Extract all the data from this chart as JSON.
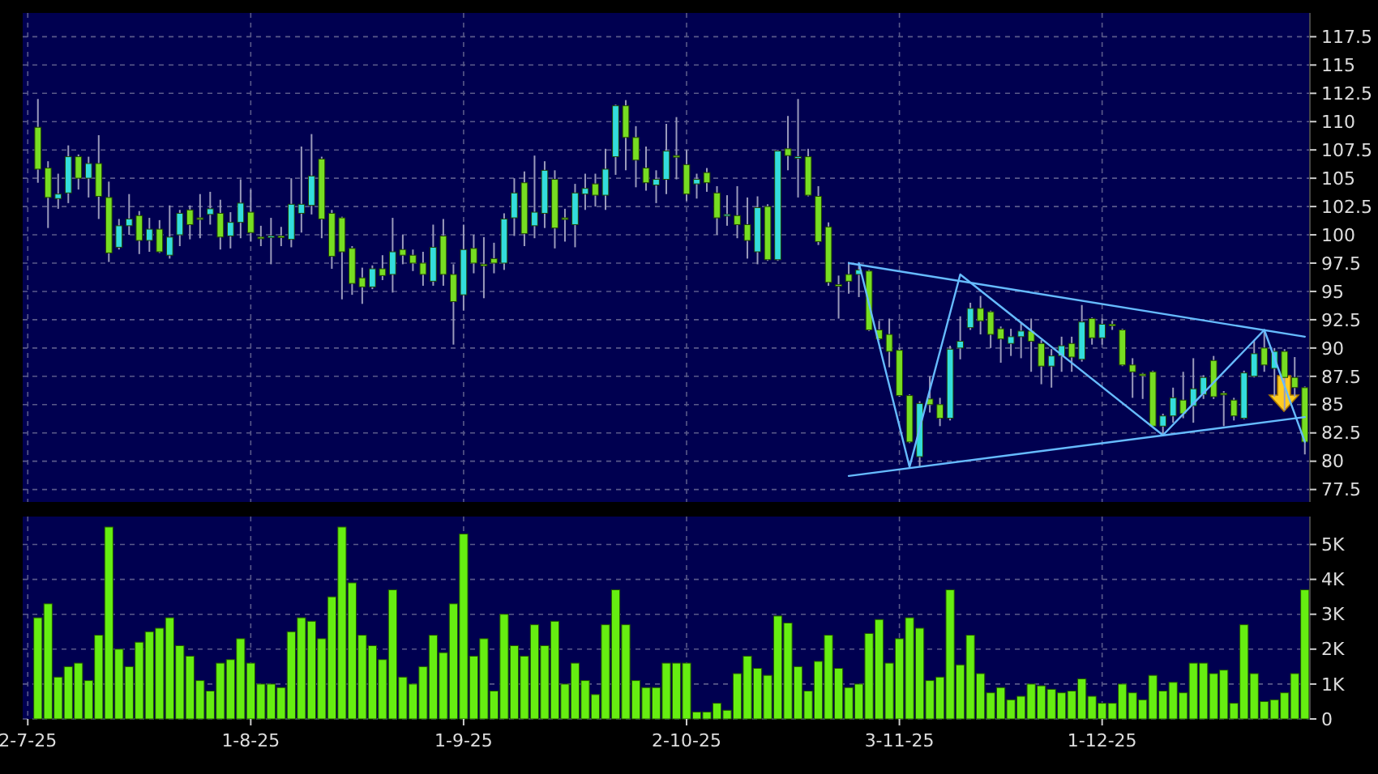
{
  "chart_data": [
    {
      "type": "candlestick",
      "grid": true,
      "categories": [
        null,
        null,
        null,
        null,
        null,
        null,
        null,
        null,
        null,
        null,
        null,
        null,
        null,
        null,
        null,
        null,
        null,
        null,
        null,
        null,
        null,
        null,
        null,
        null,
        null,
        null,
        null,
        null,
        null,
        null,
        null,
        null,
        null,
        null,
        null,
        null,
        null,
        null,
        null,
        null,
        null,
        null,
        null,
        null,
        null,
        null,
        null,
        null,
        null,
        null,
        null,
        null,
        null,
        null,
        null,
        null,
        null,
        null,
        null,
        null,
        null,
        null,
        null,
        null,
        null,
        null,
        null,
        null,
        null,
        null,
        null,
        null,
        null,
        null,
        null,
        null,
        null,
        null,
        null,
        null,
        null,
        null,
        null,
        null,
        null,
        null,
        null,
        null,
        null,
        null,
        null,
        null,
        null,
        null,
        null,
        null,
        null,
        null,
        null,
        null,
        null,
        null,
        null,
        null,
        null,
        null,
        null,
        null,
        null,
        null,
        null,
        null,
        null,
        null,
        null,
        null,
        null,
        null,
        null,
        null,
        null,
        null,
        null,
        null,
        null,
        null,
        null
      ],
      "ohlc": [
        null,
        [
          109.5,
          112.0,
          104.6,
          105.8
        ],
        [
          105.9,
          106.5,
          100.6,
          103.3
        ],
        [
          103.2,
          105.4,
          102.3,
          103.6
        ],
        [
          103.7,
          107.9,
          102.8,
          106.9
        ],
        [
          106.9,
          107.1,
          104.0,
          105.0
        ],
        [
          105.0,
          106.9,
          103.3,
          106.3
        ],
        [
          106.3,
          108.8,
          101.4,
          103.4
        ],
        [
          103.3,
          104.7,
          97.6,
          98.4
        ],
        [
          98.9,
          101.4,
          98.7,
          100.8
        ],
        [
          100.8,
          103.6,
          100.0,
          101.4
        ],
        [
          101.7,
          102.1,
          98.3,
          99.5
        ],
        [
          99.5,
          101.5,
          98.5,
          100.5
        ],
        [
          100.5,
          101.3,
          98.4,
          98.5
        ],
        [
          98.2,
          102.6,
          97.9,
          99.8
        ],
        [
          100.0,
          102.2,
          99.0,
          101.9
        ],
        [
          102.2,
          102.6,
          99.6,
          100.9
        ],
        [
          101.5,
          103.6,
          99.7,
          101.4
        ],
        [
          101.8,
          103.8,
          100.9,
          102.3
        ],
        [
          101.9,
          103.1,
          98.7,
          99.8
        ],
        [
          99.9,
          102.0,
          98.8,
          101.1
        ],
        [
          101.1,
          104.9,
          99.7,
          102.8
        ],
        [
          102.0,
          104.0,
          99.4,
          100.2
        ],
        [
          99.8,
          100.8,
          99.0,
          99.7
        ],
        [
          99.8,
          101.5,
          97.4,
          99.9
        ],
        [
          99.9,
          100.7,
          99.0,
          99.8
        ],
        [
          99.6,
          105.0,
          98.9,
          102.7
        ],
        [
          101.9,
          107.8,
          100.2,
          102.7
        ],
        [
          102.6,
          108.9,
          101.8,
          105.2
        ],
        [
          106.7,
          106.9,
          99.7,
          101.4
        ],
        [
          101.9,
          102.2,
          97.0,
          98.1
        ],
        [
          101.5,
          101.6,
          94.3,
          98.5
        ],
        [
          98.8,
          99.0,
          94.7,
          95.7
        ],
        [
          96.2,
          97.1,
          93.9,
          95.4
        ],
        [
          95.4,
          97.3,
          95.2,
          97.0
        ],
        [
          97.0,
          98.2,
          96.0,
          96.4
        ],
        [
          96.5,
          101.5,
          94.9,
          98.5
        ],
        [
          98.7,
          100.0,
          97.4,
          98.2
        ],
        [
          98.2,
          98.7,
          96.8,
          97.5
        ],
        [
          97.5,
          98.5,
          95.5,
          96.5
        ],
        [
          95.9,
          100.9,
          95.5,
          98.9
        ],
        [
          99.9,
          101.4,
          95.5,
          96.5
        ],
        [
          96.5,
          97.4,
          90.3,
          94.1
        ],
        [
          94.7,
          100.9,
          93.3,
          98.7
        ],
        [
          98.8,
          100.0,
          96.6,
          97.5
        ],
        [
          97.4,
          99.8,
          94.4,
          97.3
        ],
        [
          97.9,
          99.3,
          96.6,
          97.5
        ],
        [
          97.5,
          101.9,
          96.9,
          101.4
        ],
        [
          101.5,
          105.0,
          99.9,
          103.7
        ],
        [
          104.6,
          105.6,
          99.0,
          100.1
        ],
        [
          100.8,
          107.0,
          99.7,
          102.0
        ],
        [
          101.9,
          106.5,
          100.6,
          105.7
        ],
        [
          104.9,
          105.7,
          98.8,
          100.6
        ],
        [
          101.5,
          102.3,
          99.4,
          101.4
        ],
        [
          100.9,
          104.5,
          98.9,
          103.7
        ],
        [
          103.6,
          105.4,
          102.2,
          104.1
        ],
        [
          104.5,
          105.4,
          102.5,
          103.5
        ],
        [
          103.5,
          107.6,
          102.2,
          105.8
        ],
        [
          106.9,
          111.5,
          105.3,
          111.4
        ],
        [
          111.4,
          111.9,
          105.7,
          108.6
        ],
        [
          108.6,
          109.6,
          104.2,
          106.6
        ],
        [
          105.9,
          107.8,
          103.9,
          104.6
        ],
        [
          104.4,
          105.7,
          102.8,
          104.9
        ],
        [
          104.9,
          109.8,
          103.6,
          107.4
        ],
        [
          107.0,
          110.4,
          104.9,
          106.9
        ],
        [
          106.2,
          107.5,
          103.0,
          103.6
        ],
        [
          104.5,
          105.4,
          103.2,
          104.9
        ],
        [
          105.5,
          105.9,
          103.8,
          104.6
        ],
        [
          103.7,
          104.3,
          100.0,
          101.5
        ],
        [
          101.7,
          103.5,
          100.8,
          101.8
        ],
        [
          101.7,
          104.3,
          99.7,
          100.9
        ],
        [
          100.9,
          103.3,
          97.9,
          99.5
        ],
        [
          98.5,
          103.4,
          97.4,
          102.4
        ],
        [
          102.5,
          102.7,
          97.7,
          97.8
        ],
        [
          97.8,
          107.5,
          97.7,
          107.4
        ],
        [
          107.6,
          110.5,
          105.7,
          107.0
        ],
        [
          106.8,
          112.0,
          103.3,
          106.9
        ],
        [
          106.9,
          107.6,
          103.4,
          103.5
        ],
        [
          103.4,
          104.3,
          99.1,
          99.4
        ],
        [
          100.7,
          101.1,
          95.5,
          95.8
        ],
        [
          95.6,
          96.4,
          92.6,
          95.5
        ],
        [
          96.5,
          97.6,
          94.8,
          95.9
        ],
        [
          96.5,
          97.4,
          94.5,
          96.9
        ],
        [
          96.8,
          96.9,
          91.5,
          91.6
        ],
        [
          91.6,
          92.4,
          90.7,
          90.8
        ],
        [
          91.2,
          92.6,
          88.3,
          89.7
        ],
        [
          89.8,
          90.0,
          85.7,
          85.8
        ],
        [
          85.8,
          85.9,
          81.6,
          81.7
        ],
        [
          80.4,
          85.3,
          79.5,
          85.1
        ],
        [
          85.5,
          87.5,
          84.3,
          85.0
        ],
        [
          85.0,
          85.6,
          83.1,
          83.8
        ],
        [
          83.8,
          90.2,
          83.6,
          89.9
        ],
        [
          90.0,
          92.8,
          89.0,
          90.6
        ],
        [
          91.8,
          94.0,
          91.6,
          93.5
        ],
        [
          93.5,
          94.6,
          91.2,
          92.4
        ],
        [
          93.2,
          93.3,
          90.0,
          91.2
        ],
        [
          91.7,
          91.9,
          88.7,
          90.8
        ],
        [
          90.4,
          91.7,
          89.3,
          91.0
        ],
        [
          91.0,
          92.2,
          89.1,
          91.5
        ],
        [
          91.5,
          92.6,
          87.9,
          90.6
        ],
        [
          90.4,
          90.7,
          86.8,
          88.4
        ],
        [
          88.4,
          89.9,
          86.5,
          89.3
        ],
        [
          89.3,
          91.0,
          87.9,
          90.2
        ],
        [
          90.4,
          91.0,
          87.9,
          89.2
        ],
        [
          89.0,
          93.8,
          88.8,
          92.3
        ],
        [
          92.6,
          92.7,
          90.3,
          90.9
        ],
        [
          90.9,
          92.6,
          90.3,
          92.1
        ],
        [
          92.1,
          92.4,
          91.6,
          92.0
        ],
        [
          91.6,
          91.7,
          88.4,
          88.5
        ],
        [
          88.5,
          89.1,
          85.6,
          87.9
        ],
        [
          87.7,
          87.8,
          85.5,
          87.6
        ],
        [
          87.9,
          88.0,
          83.0,
          83.1
        ],
        [
          83.1,
          84.2,
          82.3,
          84.0
        ],
        [
          84.0,
          86.5,
          83.4,
          85.6
        ],
        [
          85.4,
          87.9,
          83.8,
          84.2
        ],
        [
          84.9,
          89.1,
          83.4,
          86.4
        ],
        [
          85.9,
          87.6,
          85.5,
          87.4
        ],
        [
          88.9,
          89.3,
          85.5,
          85.7
        ],
        [
          86.0,
          86.2,
          83.1,
          85.9
        ],
        [
          85.4,
          85.6,
          83.6,
          84.0
        ],
        [
          83.8,
          88.0,
          83.7,
          87.8
        ],
        [
          87.5,
          90.7,
          87.4,
          89.5
        ],
        [
          90.0,
          91.6,
          87.9,
          88.5
        ],
        [
          88.2,
          90.0,
          85.7,
          89.7
        ],
        [
          89.7,
          89.9,
          84.5,
          87.4
        ],
        [
          87.4,
          89.2,
          85.7,
          86.5
        ],
        [
          86.5,
          86.6,
          80.6,
          81.7
        ]
      ],
      "colors": [
        null,
        "#77dd22",
        "#77dd22",
        "#33dddd",
        "#33dddd",
        "#77dd22",
        "#33dddd",
        "#77dd22",
        "#77dd22",
        "#33dddd",
        "#33dddd",
        "#77dd22",
        "#33dddd",
        "#77dd22",
        "#33dddd",
        "#33dddd",
        "#77dd22",
        "#77dd22",
        "#33dddd",
        "#77dd22",
        "#33dddd",
        "#33dddd",
        "#77dd22",
        "#77dd22",
        "#33dddd",
        "#77dd22",
        "#33dddd",
        "#33dddd",
        "#33dddd",
        "#77dd22",
        "#77dd22",
        "#77dd22",
        "#77dd22",
        "#77dd22",
        "#33dddd",
        "#77dd22",
        "#33dddd",
        "#77dd22",
        "#77dd22",
        "#77dd22",
        "#33dddd",
        "#77dd22",
        "#77dd22",
        "#33dddd",
        "#77dd22",
        "#77dd22",
        "#77dd22",
        "#33dddd",
        "#33dddd",
        "#77dd22",
        "#33dddd",
        "#33dddd",
        "#77dd22",
        "#77dd22",
        "#33dddd",
        "#33dddd",
        "#77dd22",
        "#33dddd",
        "#33dddd",
        "#77dd22",
        "#77dd22",
        "#77dd22",
        "#33dddd",
        "#33dddd",
        "#77dd22",
        "#77dd22",
        "#33dddd",
        "#77dd22",
        "#77dd22",
        "#33dddd",
        "#77dd22",
        "#77dd22",
        "#33dddd",
        "#77dd22",
        "#33dddd",
        "#77dd22",
        "#33dddd",
        "#77dd22",
        "#77dd22",
        "#77dd22",
        "#77dd22",
        "#77dd22",
        "#33dddd",
        "#77dd22",
        "#77dd22",
        "#77dd22",
        "#77dd22",
        "#77dd22",
        "#33dddd",
        "#77dd22",
        "#77dd22",
        "#33dddd",
        "#33dddd",
        "#33dddd",
        "#77dd22",
        "#77dd22",
        "#77dd22",
        "#33dddd",
        "#33dddd",
        "#77dd22",
        "#77dd22",
        "#33dddd",
        "#33dddd",
        "#77dd22",
        "#33dddd",
        "#77dd22",
        "#33dddd",
        "#77dd22",
        "#77dd22",
        "#77dd22",
        "#77dd22",
        "#77dd22",
        "#33dddd",
        "#33dddd",
        "#77dd22",
        "#33dddd",
        "#33dddd",
        "#77dd22",
        "#77dd22",
        "#77dd22",
        "#33dddd",
        "#33dddd",
        "#77dd22",
        "#33dddd",
        "#77dd22",
        "#77dd22",
        "#77dd22"
      ],
      "series": [
        {
          "type": "line",
          "color": "#66bbff",
          "values": [
            null,
            null,
            null,
            null,
            null,
            null,
            null,
            null,
            null,
            null,
            null,
            null,
            null,
            null,
            null,
            null,
            null,
            null,
            null,
            null,
            null,
            null,
            null,
            null,
            null,
            null,
            null,
            null,
            null,
            null,
            null,
            null,
            null,
            null,
            null,
            null,
            null,
            null,
            null,
            null,
            null,
            null,
            null,
            null,
            null,
            null,
            null,
            null,
            null,
            null,
            null,
            null,
            null,
            null,
            null,
            null,
            null,
            null,
            null,
            null,
            null,
            null,
            null,
            null,
            null,
            null,
            null,
            null,
            null,
            null,
            null,
            null,
            null,
            null,
            null,
            null,
            null,
            null,
            null,
            null,
            null,
            97.5,
            null,
            null,
            null,
            null,
            null,
            null,
            null,
            null,
            null,
            null,
            null,
            null,
            null,
            null,
            null,
            null,
            null,
            null,
            null,
            null,
            null,
            null,
            null,
            null,
            null,
            null,
            null,
            null,
            null,
            null,
            null,
            null,
            null,
            null,
            null,
            null,
            null,
            null,
            null,
            null,
            null,
            null,
            null,
            null,
            91.0
          ]
        },
        {
          "type": "line",
          "color": "#66bbff",
          "values": [
            null,
            null,
            null,
            null,
            null,
            null,
            null,
            null,
            null,
            null,
            null,
            null,
            null,
            null,
            null,
            null,
            null,
            null,
            null,
            null,
            null,
            null,
            null,
            null,
            null,
            null,
            null,
            null,
            null,
            null,
            null,
            null,
            null,
            null,
            null,
            null,
            null,
            null,
            null,
            null,
            null,
            null,
            null,
            null,
            null,
            null,
            null,
            null,
            null,
            null,
            null,
            null,
            null,
            null,
            null,
            null,
            null,
            null,
            null,
            null,
            null,
            null,
            null,
            null,
            null,
            null,
            null,
            null,
            null,
            null,
            null,
            null,
            null,
            null,
            null,
            null,
            null,
            null,
            null,
            null,
            null,
            78.7,
            null,
            null,
            null,
            null,
            null,
            null,
            null,
            null,
            null,
            null,
            null,
            null,
            null,
            null,
            null,
            null,
            null,
            null,
            null,
            null,
            null,
            null,
            null,
            null,
            null,
            null,
            null,
            null,
            null,
            null,
            null,
            null,
            null,
            null,
            null,
            null,
            null,
            null,
            null,
            null,
            null,
            null,
            null,
            null,
            83.9
          ]
        },
        {
          "type": "line",
          "color": "#66bbff",
          "values": [
            null,
            null,
            null,
            null,
            null,
            null,
            null,
            null,
            null,
            null,
            null,
            null,
            null,
            null,
            null,
            null,
            null,
            null,
            null,
            null,
            null,
            null,
            null,
            null,
            null,
            null,
            null,
            null,
            null,
            null,
            null,
            null,
            null,
            null,
            null,
            null,
            null,
            null,
            null,
            null,
            null,
            null,
            null,
            null,
            null,
            null,
            null,
            null,
            null,
            null,
            null,
            null,
            null,
            null,
            null,
            null,
            null,
            null,
            null,
            null,
            null,
            null,
            null,
            null,
            null,
            null,
            null,
            null,
            null,
            null,
            null,
            null,
            null,
            null,
            null,
            null,
            null,
            null,
            null,
            null,
            null,
            null,
            97.5,
            null,
            null,
            null,
            null,
            79.5,
            null,
            null,
            null,
            null,
            96.5,
            null,
            null,
            null,
            null,
            null,
            null,
            null,
            null,
            null,
            null,
            null,
            null,
            null,
            null,
            null,
            null,
            null,
            null,
            null,
            82.3,
            null,
            null,
            null,
            null,
            null,
            null,
            null,
            null,
            null,
            91.6,
            null,
            null,
            null,
            81.7
          ]
        }
      ],
      "ylim": [
        76.4,
        119.6
      ],
      "yticks": [
        77.5,
        80,
        82.5,
        85,
        87.5,
        90,
        92.5,
        95,
        97.5,
        100,
        102.5,
        105,
        107.5,
        110,
        112.5,
        115,
        117.5
      ]
    },
    {
      "type": "bar",
      "grid": true,
      "color": "#66ee11",
      "categories": [
        "2-7-25",
        null,
        null,
        null,
        null,
        null,
        null,
        null,
        null,
        null,
        null,
        null,
        null,
        null,
        null,
        null,
        null,
        null,
        null,
        null,
        null,
        null,
        "1-8-25",
        null,
        null,
        null,
        null,
        null,
        null,
        null,
        null,
        null,
        null,
        null,
        null,
        null,
        null,
        null,
        null,
        null,
        null,
        null,
        null,
        "1-9-25",
        null,
        null,
        null,
        null,
        null,
        null,
        null,
        null,
        null,
        null,
        null,
        null,
        null,
        null,
        null,
        null,
        null,
        null,
        null,
        null,
        null,
        "2-10-25",
        null,
        null,
        null,
        null,
        null,
        null,
        null,
        null,
        null,
        null,
        null,
        null,
        null,
        null,
        null,
        null,
        null,
        null,
        null,
        null,
        "3-11-25",
        null,
        null,
        null,
        null,
        null,
        null,
        null,
        null,
        null,
        null,
        null,
        null,
        null,
        null,
        null,
        null,
        null,
        null,
        null,
        "1-12-25",
        null,
        null,
        null,
        null,
        null,
        null,
        null,
        null,
        null,
        null,
        null,
        null,
        null,
        null,
        null,
        null,
        null,
        null,
        null,
        null
      ],
      "values": [
        null,
        2900,
        3300,
        1200,
        1500,
        1600,
        1100,
        2400,
        5500,
        2000,
        1500,
        2200,
        2500,
        2600,
        2900,
        2100,
        1800,
        1100,
        800,
        1600,
        1700,
        2300,
        1600,
        1000,
        1000,
        900,
        2500,
        2900,
        2800,
        2300,
        3500,
        5500,
        3900,
        2400,
        2100,
        1700,
        3700,
        1200,
        1000,
        1500,
        2400,
        1900,
        3300,
        5300,
        1800,
        2300,
        800,
        3000,
        2100,
        1800,
        2700,
        2100,
        2800,
        1000,
        1600,
        1100,
        700,
        2700,
        3700,
        2700,
        1100,
        900,
        900,
        1600,
        1600,
        1600,
        200,
        200,
        450,
        250,
        1300,
        1800,
        1450,
        1250,
        2950,
        2750,
        1500,
        800,
        1650,
        2400,
        1450,
        900,
        1000,
        2450,
        2850,
        1600,
        2300,
        2900,
        2600,
        1100,
        1200,
        3700,
        1550,
        2400,
        1300,
        750,
        900,
        550,
        650,
        1000,
        950,
        850,
        750,
        800,
        1150,
        650,
        450,
        450,
        1000,
        750,
        550,
        1250,
        800,
        1050,
        750,
        1600,
        1600,
        1300,
        1400,
        450,
        2700,
        1300,
        500,
        550,
        750,
        1300,
        3700
      ],
      "ylim": [
        0,
        5800
      ],
      "yticks": [
        0,
        {
          "value": 1000,
          "label": "1K"
        },
        {
          "value": 2000,
          "label": "2K"
        },
        {
          "value": 3000,
          "label": "3K"
        },
        {
          "value": 4000,
          "label": "4K"
        },
        {
          "value": 5000,
          "label": "5K"
        }
      ]
    }
  ]
}
